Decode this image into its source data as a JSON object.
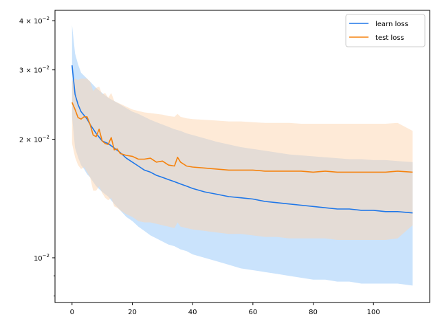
{
  "chart_data": {
    "type": "line",
    "yscale": "log",
    "xlim": [
      -5.65,
      118.65
    ],
    "ylim": [
      0.0077,
      0.0425
    ],
    "xticks": [
      0,
      20,
      40,
      60,
      80,
      100
    ],
    "xtick_labels": [
      "0",
      "20",
      "40",
      "60",
      "80",
      "100"
    ],
    "yticks": [
      {
        "value": 0.04,
        "base": "4 × 10",
        "exp": "−2"
      },
      {
        "value": 0.03,
        "base": "3 × 10",
        "exp": "−2"
      },
      {
        "value": 0.02,
        "base": "2 × 10",
        "exp": "−2"
      },
      {
        "value": 0.01,
        "base": "10",
        "exp": "−2"
      }
    ],
    "legend_position": "top-right",
    "series": [
      {
        "name": "learn loss",
        "color": "#1f77e8",
        "band_color": "#aed4fb",
        "x": [
          0,
          1,
          2,
          3,
          4,
          5,
          6,
          8,
          10,
          12,
          14,
          16,
          18,
          20,
          22,
          24,
          26,
          28,
          30,
          32,
          34,
          36,
          38,
          40,
          44,
          48,
          52,
          56,
          60,
          64,
          68,
          72,
          76,
          80,
          84,
          88,
          92,
          96,
          100,
          104,
          108,
          113
        ],
        "y": [
          0.0308,
          0.026,
          0.0245,
          0.0235,
          0.023,
          0.0225,
          0.0218,
          0.0207,
          0.0198,
          0.0195,
          0.019,
          0.0185,
          0.0179,
          0.0175,
          0.0171,
          0.0167,
          0.0165,
          0.0162,
          0.016,
          0.0158,
          0.0156,
          0.0154,
          0.0152,
          0.015,
          0.0147,
          0.0145,
          0.0143,
          0.0142,
          0.0141,
          0.0139,
          0.0138,
          0.0137,
          0.0136,
          0.0135,
          0.0134,
          0.0133,
          0.0133,
          0.0132,
          0.0132,
          0.0131,
          0.0131,
          0.013
        ],
        "upper": [
          0.039,
          0.033,
          0.031,
          0.0295,
          0.029,
          0.0285,
          0.028,
          0.027,
          0.0262,
          0.0255,
          0.025,
          0.0245,
          0.024,
          0.0235,
          0.0232,
          0.0228,
          0.0224,
          0.0221,
          0.0218,
          0.0215,
          0.0212,
          0.021,
          0.0207,
          0.0205,
          0.0201,
          0.0197,
          0.0194,
          0.0191,
          0.0189,
          0.0187,
          0.0185,
          0.0183,
          0.0182,
          0.0181,
          0.018,
          0.0179,
          0.0178,
          0.0178,
          0.0177,
          0.0177,
          0.0176,
          0.0175
        ],
        "lower": [
          0.0228,
          0.019,
          0.018,
          0.0172,
          0.0168,
          0.0163,
          0.016,
          0.0152,
          0.0147,
          0.0143,
          0.0137,
          0.0132,
          0.0127,
          0.0124,
          0.012,
          0.0117,
          0.0114,
          0.0112,
          0.011,
          0.0108,
          0.0107,
          0.0105,
          0.0104,
          0.0102,
          0.01,
          0.0098,
          0.0096,
          0.0094,
          0.0093,
          0.0092,
          0.0091,
          0.009,
          0.0089,
          0.0088,
          0.0088,
          0.0087,
          0.0087,
          0.0086,
          0.0086,
          0.0086,
          0.0086,
          0.0085
        ]
      },
      {
        "name": "test loss",
        "color": "#f5820d",
        "band_color": "#fdd6b0",
        "x": [
          0,
          1,
          2,
          3,
          4,
          5,
          6,
          7,
          8,
          9,
          10,
          11,
          12,
          13,
          14,
          15,
          16,
          18,
          20,
          22,
          24,
          26,
          28,
          30,
          32,
          34,
          35,
          36,
          38,
          40,
          44,
          48,
          52,
          56,
          60,
          64,
          68,
          72,
          76,
          80,
          84,
          88,
          92,
          96,
          100,
          104,
          108,
          113
        ],
        "y": [
          0.0248,
          0.0238,
          0.0227,
          0.0225,
          0.0228,
          0.0228,
          0.0218,
          0.0205,
          0.0203,
          0.0212,
          0.0198,
          0.0195,
          0.0194,
          0.0202,
          0.0188,
          0.0189,
          0.0184,
          0.0182,
          0.0181,
          0.0178,
          0.0178,
          0.0179,
          0.0175,
          0.0176,
          0.0172,
          0.0171,
          0.018,
          0.0175,
          0.0171,
          0.017,
          0.0169,
          0.0168,
          0.0167,
          0.0167,
          0.0167,
          0.0166,
          0.0166,
          0.0166,
          0.0166,
          0.0165,
          0.0166,
          0.0165,
          0.0165,
          0.0165,
          0.0165,
          0.0165,
          0.0166,
          0.0165
        ],
        "upper": [
          0.028,
          0.0285,
          0.0283,
          0.0285,
          0.0285,
          0.0285,
          0.028,
          0.0265,
          0.027,
          0.0272,
          0.026,
          0.0262,
          0.0255,
          0.0262,
          0.025,
          0.0248,
          0.0246,
          0.0242,
          0.0238,
          0.0236,
          0.0234,
          0.0233,
          0.0232,
          0.0231,
          0.0229,
          0.0228,
          0.0232,
          0.0228,
          0.0226,
          0.0225,
          0.0224,
          0.0223,
          0.0222,
          0.0222,
          0.0221,
          0.022,
          0.022,
          0.022,
          0.0219,
          0.0219,
          0.0219,
          0.0219,
          0.0219,
          0.0219,
          0.0219,
          0.0219,
          0.022,
          0.021
        ],
        "lower": [
          0.0195,
          0.018,
          0.0172,
          0.0168,
          0.017,
          0.0165,
          0.016,
          0.0148,
          0.0148,
          0.0152,
          0.0146,
          0.0142,
          0.014,
          0.0142,
          0.0135,
          0.0134,
          0.0132,
          0.0129,
          0.0127,
          0.0124,
          0.0123,
          0.0123,
          0.0122,
          0.0121,
          0.012,
          0.0119,
          0.0123,
          0.012,
          0.0119,
          0.0118,
          0.0117,
          0.0116,
          0.0115,
          0.0115,
          0.0114,
          0.0113,
          0.0113,
          0.0112,
          0.0112,
          0.0112,
          0.0112,
          0.0111,
          0.0111,
          0.0111,
          0.0111,
          0.0111,
          0.0112,
          0.0121
        ]
      }
    ]
  }
}
